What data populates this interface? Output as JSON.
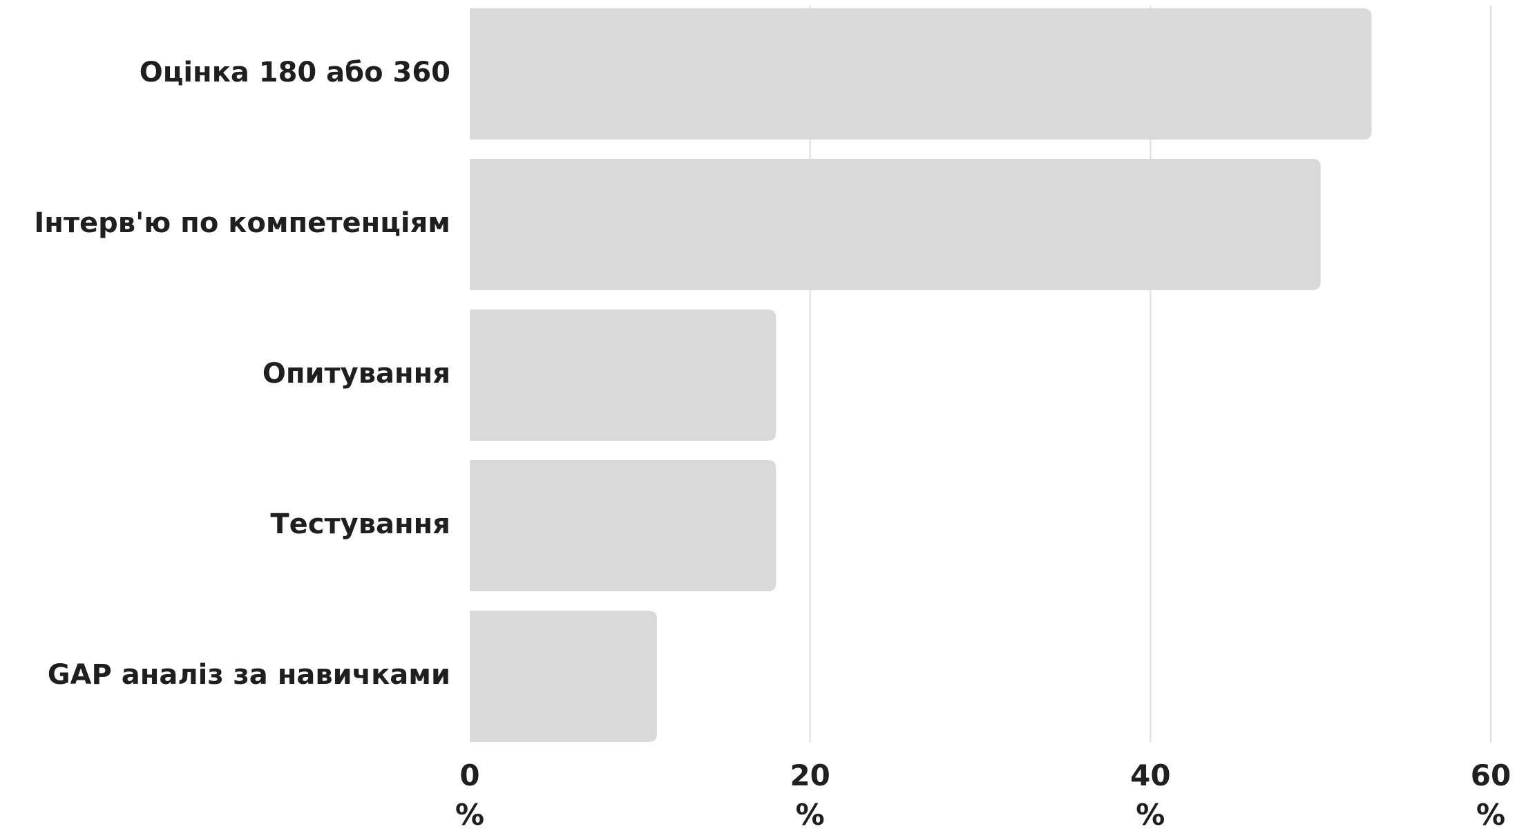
{
  "chart_data": {
    "type": "bar",
    "orientation": "horizontal",
    "categories": [
      "Оцінка 180 або 360",
      "Інтерв'ю по компетенціям",
      "Опитування",
      "Тестування",
      "GAP аналіз за навичками"
    ],
    "values": [
      53,
      50,
      18,
      18,
      11
    ],
    "xlim": [
      0,
      60
    ],
    "xticks": [
      0,
      20,
      40,
      60
    ],
    "tick_unit": "%",
    "grid": "vertical",
    "legend": "none",
    "title": "",
    "xlabel": "",
    "ylabel": "",
    "colors": {
      "bar": "#d9d9d9",
      "grid": "#dddddd",
      "text": "#1f1f1f",
      "background": "#ffffff"
    }
  }
}
